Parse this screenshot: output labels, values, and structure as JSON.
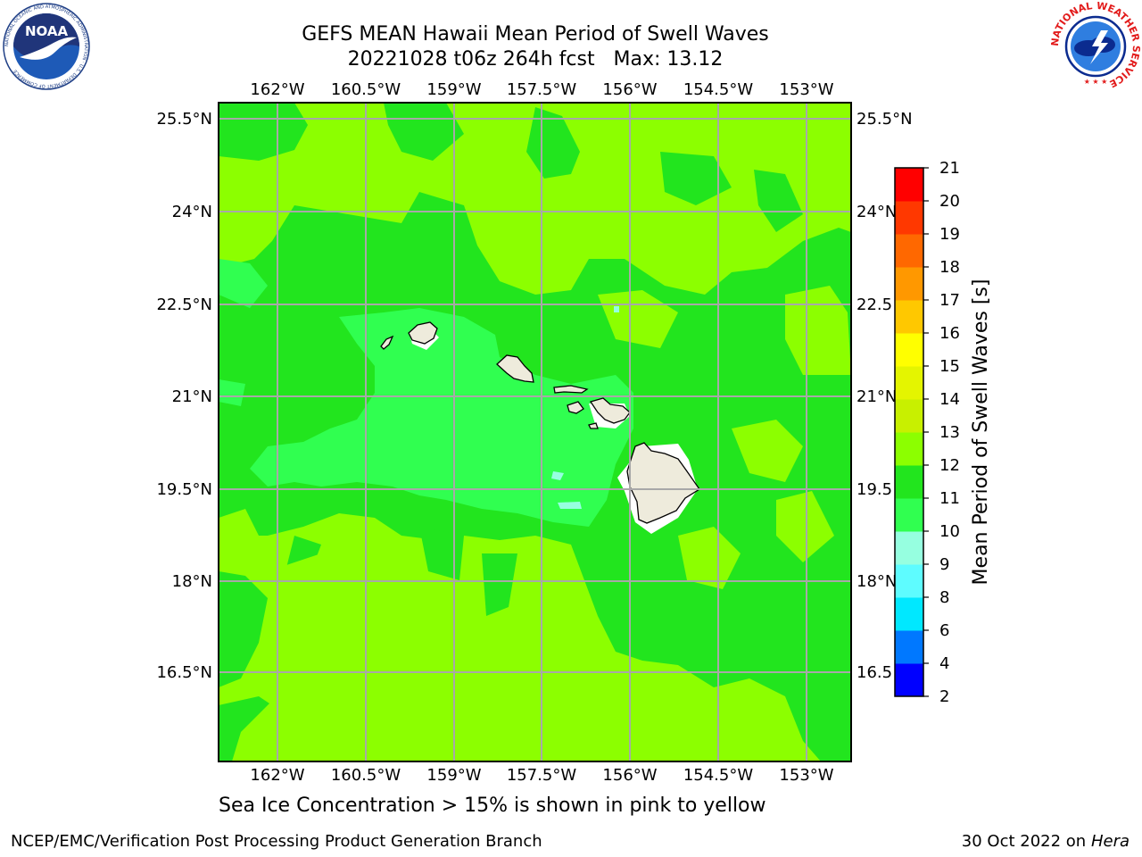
{
  "header": {
    "title_line1": "GEFS MEAN Hawaii Mean Period of Swell Waves",
    "title_line2": "20221028 t06z 264h fcst   Max: 13.12"
  },
  "logos": {
    "left": "NOAA",
    "left_ring": "NATIONAL OCEANIC AND ATMOSPHERIC ADMINISTRATION · U.S. DEPARTMENT OF COMMERCE",
    "right_ring": "NATIONAL WEATHER SERVICE"
  },
  "map": {
    "longitude_labels": [
      "162°W",
      "160.5°W",
      "159°W",
      "157.5°W",
      "156°W",
      "154.5°W",
      "153°W"
    ],
    "latitude_labels": [
      "25.5°N",
      "24°N",
      "22.5°N",
      "21°N",
      "19.5°N",
      "18°N",
      "16.5°N"
    ],
    "right_latitude_labels": [
      "25.5°N",
      "24°N",
      "22.5",
      "21°N",
      "19.5",
      "18°N",
      "16.5"
    ],
    "land_color": "#eeebdc",
    "ocean_base_color": "#8cff00",
    "grid_color": "#a8a8a8"
  },
  "colorbar": {
    "label": "Mean Period of Swell Waves [s]",
    "ticks": [
      "2",
      "4",
      "6",
      "8",
      "9",
      "10",
      "11",
      "12",
      "13",
      "14",
      "15",
      "16",
      "17",
      "18",
      "19",
      "20",
      "21"
    ],
    "colors": [
      "#0000ff",
      "#0078ff",
      "#00e8ff",
      "#5efcff",
      "#96ffe0",
      "#30ff50",
      "#22e51e",
      "#8cff00",
      "#c8f000",
      "#e4f500",
      "#ffff00",
      "#ffc800",
      "#ff9800",
      "#ff6800",
      "#ff3800",
      "#ff0000"
    ]
  },
  "footer": {
    "caption": "Sea Ice Concentration > 15% is shown in pink to yellow",
    "credit_left": "NCEP/EMC/Verification Post Processing Product Generation Branch",
    "credit_date": "30 Oct 2022 on",
    "credit_host": "Hera"
  }
}
